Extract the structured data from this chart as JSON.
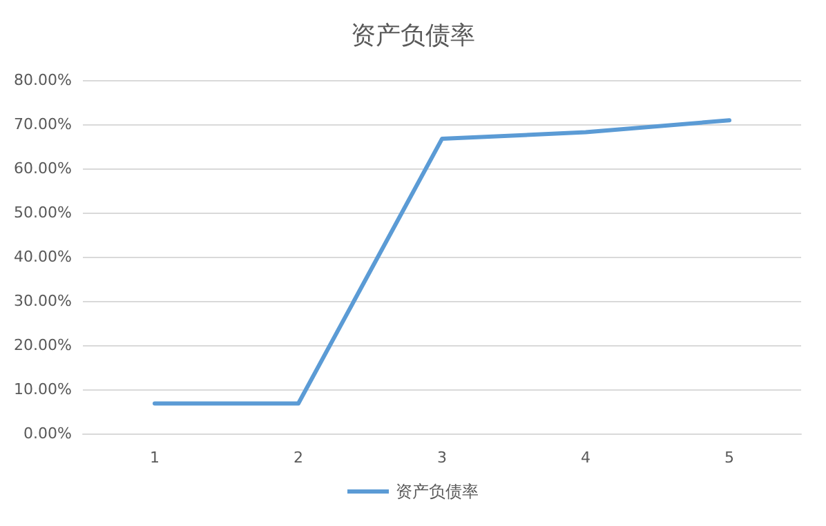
{
  "chart_data": {
    "type": "line",
    "title": "资产负债率",
    "categories": [
      "1",
      "2",
      "3",
      "4",
      "5"
    ],
    "series": [
      {
        "name": "资产负债率",
        "color": "#5b9bd5",
        "values": [
          6.8,
          6.8,
          66.7,
          68.2,
          70.9
        ]
      }
    ],
    "ylim": [
      0,
      80
    ],
    "yticks": [
      {
        "value": 0,
        "label": "0.00%"
      },
      {
        "value": 10,
        "label": "10.00%"
      },
      {
        "value": 20,
        "label": "20.00%"
      },
      {
        "value": 30,
        "label": "30.00%"
      },
      {
        "value": 40,
        "label": "40.00%"
      },
      {
        "value": 50,
        "label": "50.00%"
      },
      {
        "value": 60,
        "label": "60.00%"
      },
      {
        "value": 70,
        "label": "70.00%"
      },
      {
        "value": 80,
        "label": "80.00%"
      }
    ],
    "grid": "y",
    "legend": "bottom",
    "marker": "none",
    "line_style": "solid"
  }
}
